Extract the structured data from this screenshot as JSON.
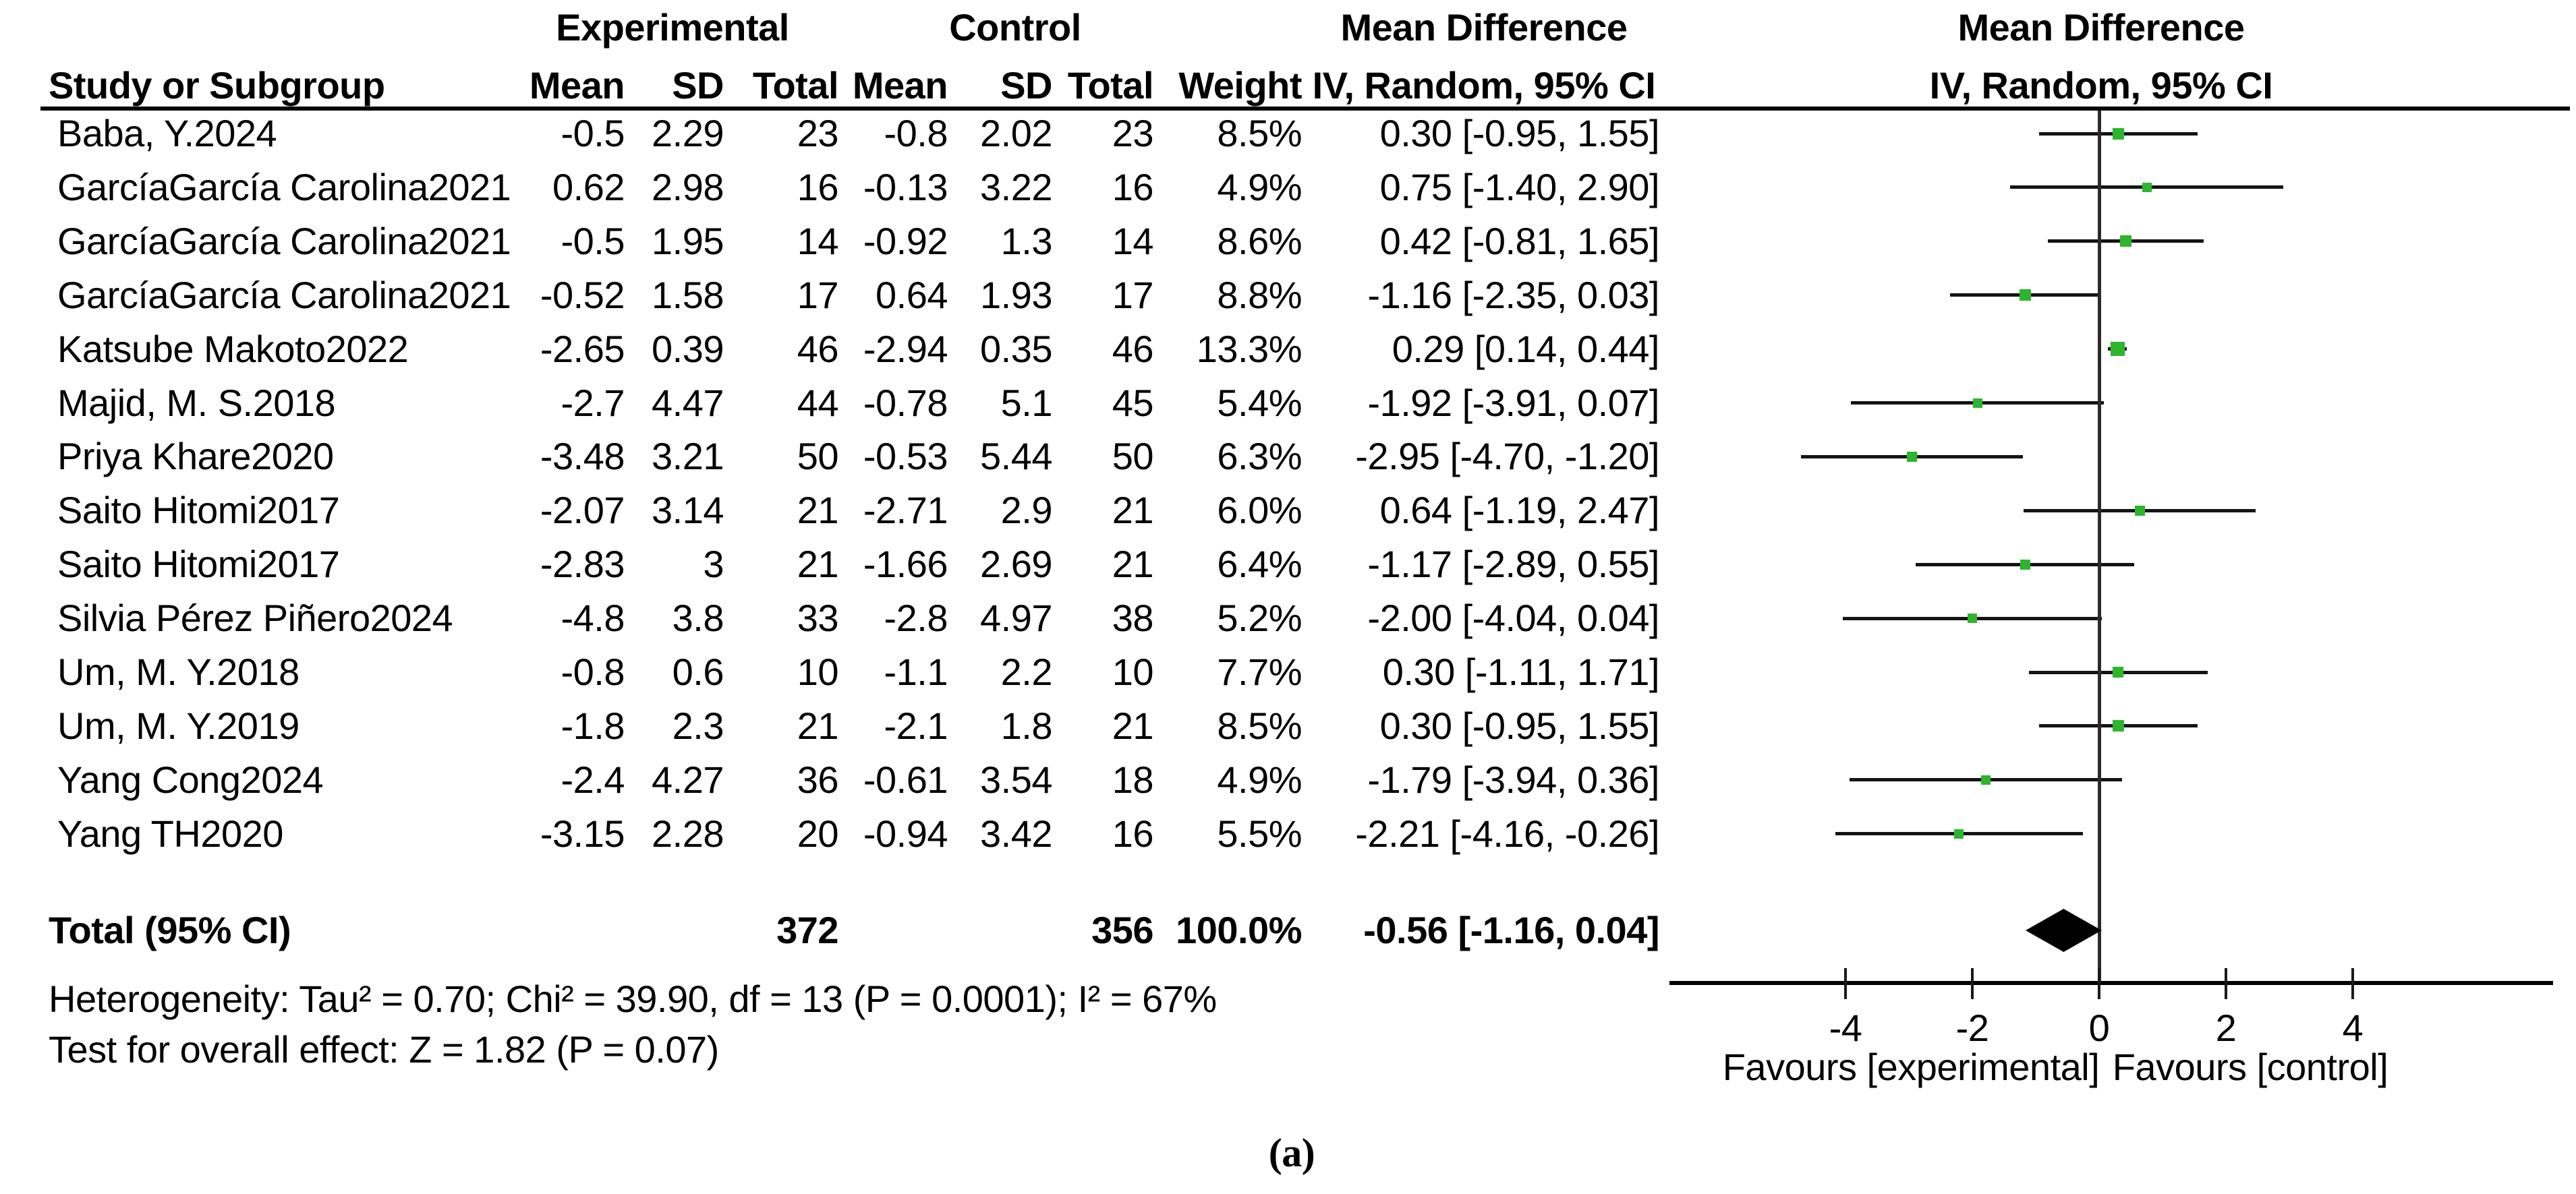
{
  "figure": {
    "caption": "(a)"
  },
  "table": {
    "group_headers": {
      "experimental": "Experimental",
      "control": "Control",
      "md_left": "Mean Difference",
      "md_right": "Mean Difference"
    },
    "column_headers": {
      "study": "Study or Subgroup",
      "exp_mean": "Mean",
      "exp_sd": "SD",
      "exp_total": "Total",
      "ctrl_mean": "Mean",
      "ctrl_sd": "SD",
      "ctrl_total": "Total",
      "weight": "Weight",
      "iv_left": "IV, Random, 95% CI",
      "iv_right": "IV, Random, 95% CI"
    }
  },
  "chart_data": {
    "type": "forest",
    "effect_measure": "Mean Difference",
    "model": "IV, Random, 95% CI",
    "marker_color": "#2db52d",
    "diamond_color": "#000000",
    "x_axis": {
      "ticks": [
        "-4",
        "-2",
        "0",
        "2",
        "4"
      ],
      "tick_values": [
        -4,
        -2,
        0,
        2,
        4
      ],
      "min": -6.8,
      "max": 7.1,
      "left_label": "Favours [experimental]",
      "right_label": "Favours [control]"
    },
    "studies": [
      {
        "name": "Baba, Y.2024",
        "exp_mean": "-0.5",
        "exp_sd": "2.29",
        "exp_total": "23",
        "ctrl_mean": "-0.8",
        "ctrl_sd": "2.02",
        "ctrl_total": "23",
        "weight": "8.5%",
        "md_ci": "0.30 [-0.95, 1.55]",
        "md": 0.3,
        "lo": -0.95,
        "hi": 1.55,
        "weight_pct": 8.5
      },
      {
        "name": "GarcíaGarcía Carolina2021",
        "exp_mean": "0.62",
        "exp_sd": "2.98",
        "exp_total": "16",
        "ctrl_mean": "-0.13",
        "ctrl_sd": "3.22",
        "ctrl_total": "16",
        "weight": "4.9%",
        "md_ci": "0.75 [-1.40, 2.90]",
        "md": 0.75,
        "lo": -1.4,
        "hi": 2.9,
        "weight_pct": 4.9
      },
      {
        "name": "GarcíaGarcía Carolina2021",
        "exp_mean": "-0.5",
        "exp_sd": "1.95",
        "exp_total": "14",
        "ctrl_mean": "-0.92",
        "ctrl_sd": "1.3",
        "ctrl_total": "14",
        "weight": "8.6%",
        "md_ci": "0.42 [-0.81, 1.65]",
        "md": 0.42,
        "lo": -0.81,
        "hi": 1.65,
        "weight_pct": 8.6
      },
      {
        "name": "GarcíaGarcía Carolina2021",
        "exp_mean": "-0.52",
        "exp_sd": "1.58",
        "exp_total": "17",
        "ctrl_mean": "0.64",
        "ctrl_sd": "1.93",
        "ctrl_total": "17",
        "weight": "8.8%",
        "md_ci": "-1.16 [-2.35, 0.03]",
        "md": -1.16,
        "lo": -2.35,
        "hi": 0.03,
        "weight_pct": 8.8
      },
      {
        "name": "Katsube Makoto2022",
        "exp_mean": "-2.65",
        "exp_sd": "0.39",
        "exp_total": "46",
        "ctrl_mean": "-2.94",
        "ctrl_sd": "0.35",
        "ctrl_total": "46",
        "weight": "13.3%",
        "md_ci": "0.29 [0.14, 0.44]",
        "md": 0.29,
        "lo": 0.14,
        "hi": 0.44,
        "weight_pct": 13.3
      },
      {
        "name": "Majid, M. S.2018",
        "exp_mean": "-2.7",
        "exp_sd": "4.47",
        "exp_total": "44",
        "ctrl_mean": "-0.78",
        "ctrl_sd": "5.1",
        "ctrl_total": "45",
        "weight": "5.4%",
        "md_ci": "-1.92 [-3.91, 0.07]",
        "md": -1.92,
        "lo": -3.91,
        "hi": 0.07,
        "weight_pct": 5.4
      },
      {
        "name": "Priya Khare2020",
        "exp_mean": "-3.48",
        "exp_sd": "3.21",
        "exp_total": "50",
        "ctrl_mean": "-0.53",
        "ctrl_sd": "5.44",
        "ctrl_total": "50",
        "weight": "6.3%",
        "md_ci": "-2.95 [-4.70, -1.20]",
        "md": -2.95,
        "lo": -4.7,
        "hi": -1.2,
        "weight_pct": 6.3
      },
      {
        "name": "Saito Hitomi2017",
        "exp_mean": "-2.07",
        "exp_sd": "3.14",
        "exp_total": "21",
        "ctrl_mean": "-2.71",
        "ctrl_sd": "2.9",
        "ctrl_total": "21",
        "weight": "6.0%",
        "md_ci": "0.64 [-1.19, 2.47]",
        "md": 0.64,
        "lo": -1.19,
        "hi": 2.47,
        "weight_pct": 6.0
      },
      {
        "name": "Saito Hitomi2017",
        "exp_mean": "-2.83",
        "exp_sd": "3",
        "exp_total": "21",
        "ctrl_mean": "-1.66",
        "ctrl_sd": "2.69",
        "ctrl_total": "21",
        "weight": "6.4%",
        "md_ci": "-1.17 [-2.89, 0.55]",
        "md": -1.17,
        "lo": -2.89,
        "hi": 0.55,
        "weight_pct": 6.4
      },
      {
        "name": "Silvia Pérez Piñero2024",
        "exp_mean": "-4.8",
        "exp_sd": "3.8",
        "exp_total": "33",
        "ctrl_mean": "-2.8",
        "ctrl_sd": "4.97",
        "ctrl_total": "38",
        "weight": "5.2%",
        "md_ci": "-2.00 [-4.04, 0.04]",
        "md": -2.0,
        "lo": -4.04,
        "hi": 0.04,
        "weight_pct": 5.2
      },
      {
        "name": "Um, M. Y.2018",
        "exp_mean": "-0.8",
        "exp_sd": "0.6",
        "exp_total": "10",
        "ctrl_mean": "-1.1",
        "ctrl_sd": "2.2",
        "ctrl_total": "10",
        "weight": "7.7%",
        "md_ci": "0.30 [-1.11, 1.71]",
        "md": 0.3,
        "lo": -1.11,
        "hi": 1.71,
        "weight_pct": 7.7
      },
      {
        "name": "Um, M. Y.2019",
        "exp_mean": "-1.8",
        "exp_sd": "2.3",
        "exp_total": "21",
        "ctrl_mean": "-2.1",
        "ctrl_sd": "1.8",
        "ctrl_total": "21",
        "weight": "8.5%",
        "md_ci": "0.30 [-0.95, 1.55]",
        "md": 0.3,
        "lo": -0.95,
        "hi": 1.55,
        "weight_pct": 8.5
      },
      {
        "name": "Yang Cong2024",
        "exp_mean": "-2.4",
        "exp_sd": "4.27",
        "exp_total": "36",
        "ctrl_mean": "-0.61",
        "ctrl_sd": "3.54",
        "ctrl_total": "18",
        "weight": "4.9%",
        "md_ci": "-1.79 [-3.94, 0.36]",
        "md": -1.79,
        "lo": -3.94,
        "hi": 0.36,
        "weight_pct": 4.9
      },
      {
        "name": "Yang TH2020",
        "exp_mean": "-3.15",
        "exp_sd": "2.28",
        "exp_total": "20",
        "ctrl_mean": "-0.94",
        "ctrl_sd": "3.42",
        "ctrl_total": "16",
        "weight": "5.5%",
        "md_ci": "-2.21 [-4.16, -0.26]",
        "md": -2.21,
        "lo": -4.16,
        "hi": -0.26,
        "weight_pct": 5.5
      }
    ],
    "total": {
      "label": "Total (95% CI)",
      "exp_total": "372",
      "ctrl_total": "356",
      "weight": "100.0%",
      "md_ci": "-0.56 [-1.16, 0.04]",
      "md": -0.56,
      "lo": -1.16,
      "hi": 0.04
    },
    "heterogeneity": "Heterogeneity: Tau² = 0.70; Chi² = 39.90, df = 13 (P = 0.0001); I² = 67%",
    "overall_effect": "Test for overall effect: Z = 1.82 (P = 0.07)"
  }
}
